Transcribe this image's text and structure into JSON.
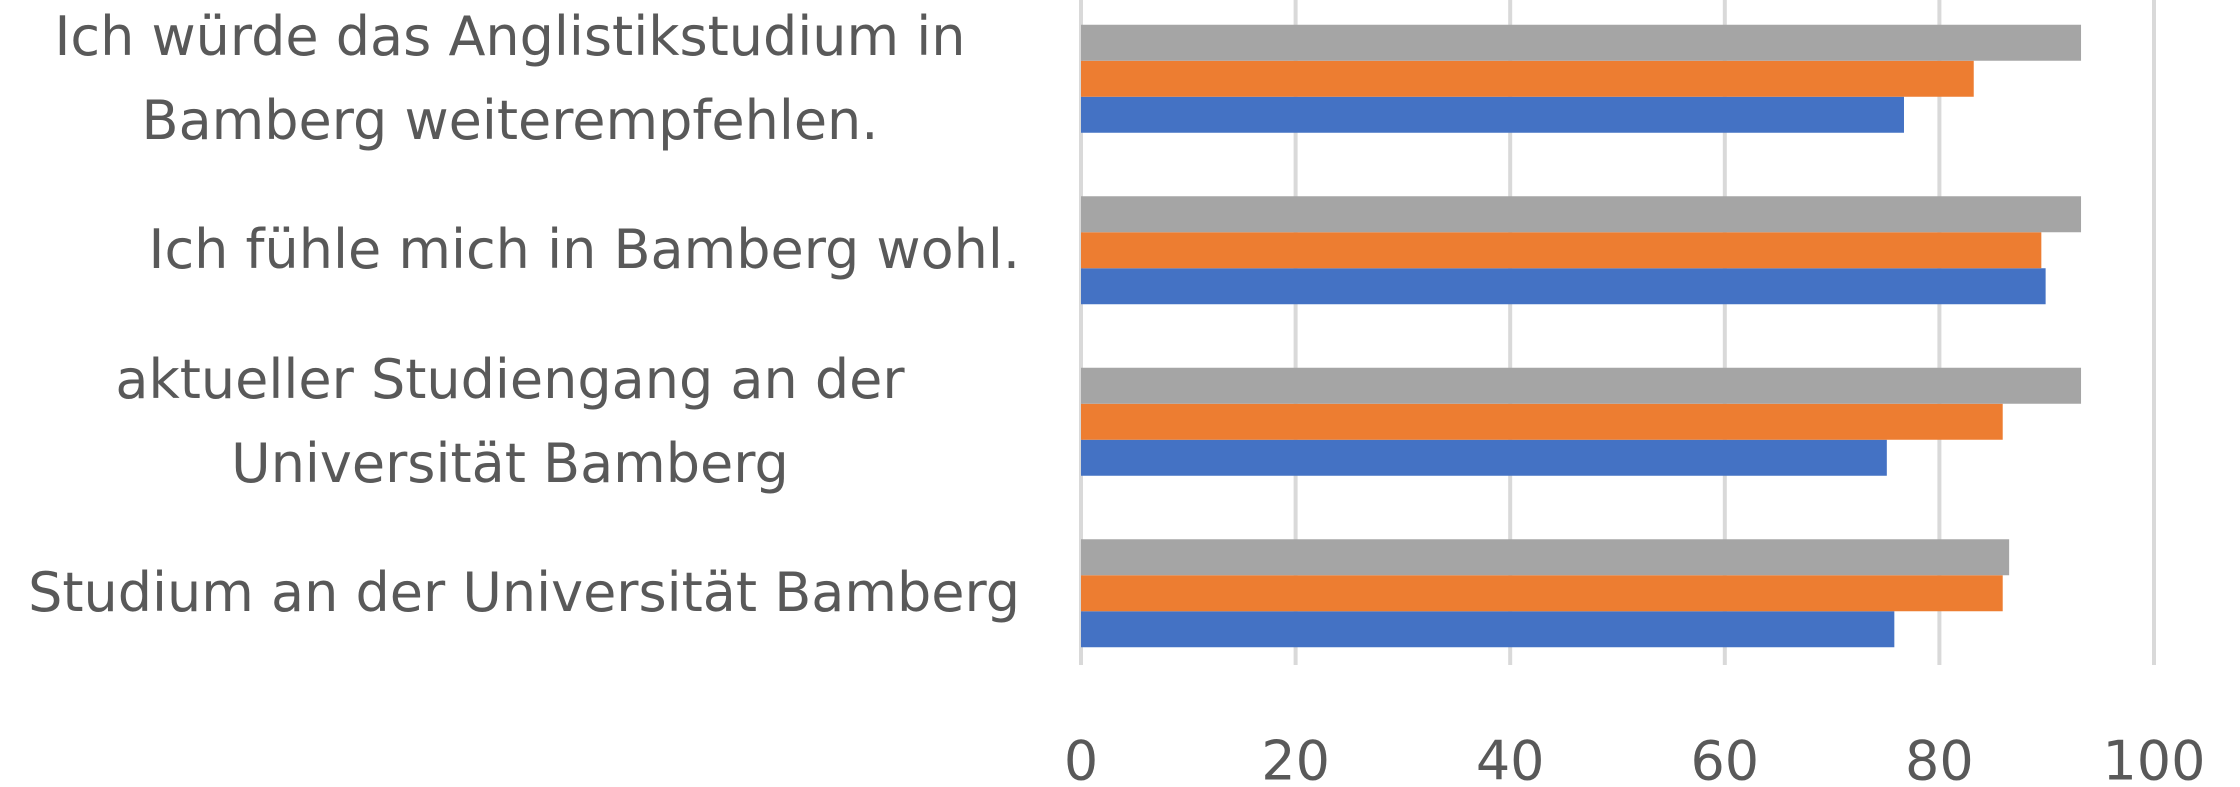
{
  "chart_data": {
    "type": "barh",
    "categories": [
      "Studium an der Universität Bamberg",
      "aktueller Studiengang an der Universität Bamberg",
      "Ich fühle mich in Bamberg wohl.",
      "Ich würde das Anglistikstudium in Bamberg weiterempfehlen."
    ],
    "series": [
      {
        "color": "#4472c4",
        "values": [
          75.8,
          75.1,
          89.9,
          76.7
        ]
      },
      {
        "color": "#ed7d31",
        "values": [
          85.9,
          85.9,
          89.5,
          83.2
        ]
      },
      {
        "color": "#a5a5a5",
        "values": [
          86.5,
          93.2,
          93.2,
          93.2
        ]
      }
    ],
    "xlim": [
      0,
      100
    ],
    "xticks": [
      0,
      20,
      40,
      60,
      80,
      100
    ],
    "grid": true
  }
}
